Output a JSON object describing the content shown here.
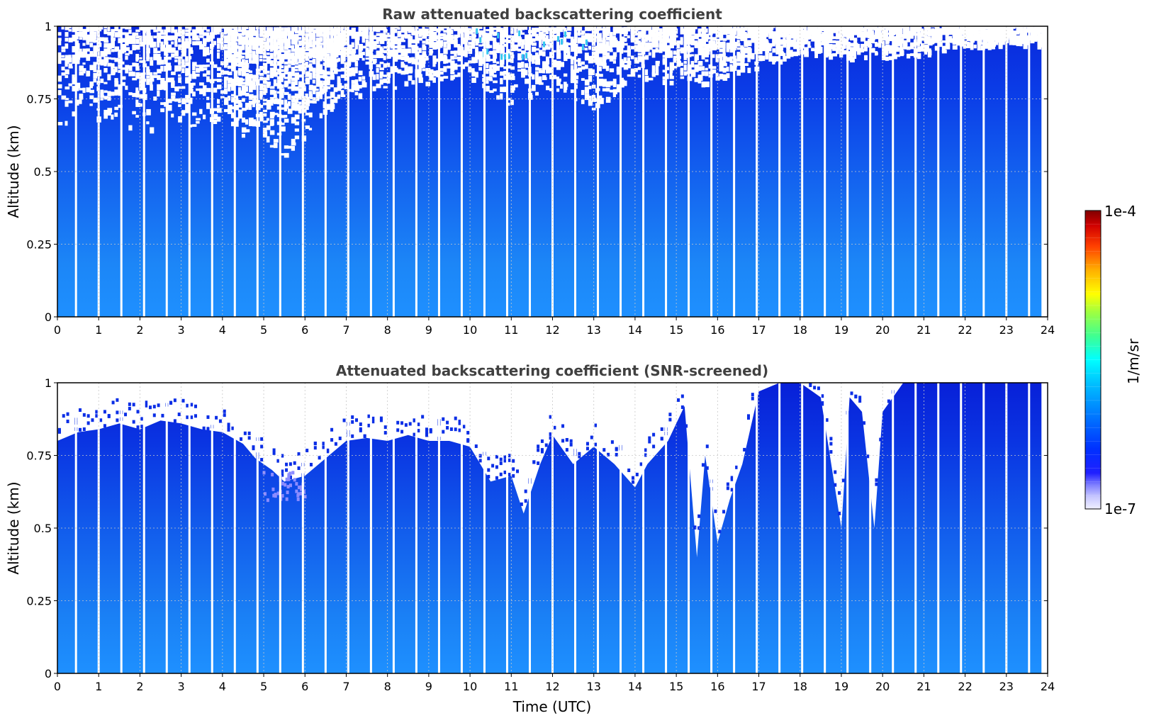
{
  "chart_data": [
    {
      "type": "heatmap",
      "title": "Raw attenuated backscattering coefficient",
      "xlabel": "",
      "ylabel": "Altitude (km)",
      "xlim": [
        0,
        24
      ],
      "ylim": [
        0,
        1
      ],
      "x_ticks": [
        "0",
        "1",
        "2",
        "3",
        "4",
        "5",
        "6",
        "7",
        "8",
        "9",
        "10",
        "11",
        "12",
        "13",
        "14",
        "15",
        "16",
        "17",
        "18",
        "19",
        "20",
        "21",
        "22",
        "23",
        "24"
      ],
      "y_ticks": [
        "0",
        "0.25",
        "0.5",
        "0.75",
        "1"
      ],
      "grid": true,
      "noise_top_profile": [
        [
          0,
          0.66
        ],
        [
          1,
          0.68
        ],
        [
          2,
          0.64
        ],
        [
          3,
          0.65
        ],
        [
          4,
          0.66
        ],
        [
          5,
          0.58
        ],
        [
          5.5,
          0.55
        ],
        [
          6,
          0.62
        ],
        [
          6.5,
          0.7
        ],
        [
          7,
          0.75
        ],
        [
          8,
          0.78
        ],
        [
          9,
          0.8
        ],
        [
          10,
          0.82
        ],
        [
          11,
          0.72
        ],
        [
          12,
          0.78
        ],
        [
          13,
          0.7
        ],
        [
          14,
          0.82
        ],
        [
          15,
          0.8
        ],
        [
          16,
          0.8
        ],
        [
          17,
          0.85
        ],
        [
          18,
          0.9
        ],
        [
          19,
          0.88
        ],
        [
          20,
          0.88
        ],
        [
          21,
          0.9
        ],
        [
          22,
          0.92
        ],
        [
          23,
          0.93
        ],
        [
          24,
          0.93
        ]
      ],
      "data_gaps_utc": [
        0.45,
        1.0,
        1.55,
        2.1,
        2.65,
        3.2,
        3.75,
        4.3,
        4.85,
        5.4,
        5.95,
        6.5,
        7.05,
        7.6,
        8.15,
        8.7,
        9.25,
        9.8,
        10.35,
        10.9,
        11.45,
        12.0,
        12.55,
        13.1,
        13.65,
        14.2,
        14.75,
        15.3,
        15.85,
        16.4,
        16.95,
        17.5,
        18.05,
        18.6,
        19.15,
        19.7,
        20.25,
        20.8,
        21.35,
        21.9,
        22.45,
        23.0,
        23.55
      ]
    },
    {
      "type": "heatmap",
      "title": "Attenuated backscattering coefficient (SNR-screened)",
      "xlabel": "Time (UTC)",
      "ylabel": "Altitude (km)",
      "xlim": [
        0,
        24
      ],
      "ylim": [
        0,
        1
      ],
      "x_ticks": [
        "0",
        "1",
        "2",
        "3",
        "4",
        "5",
        "6",
        "7",
        "8",
        "9",
        "10",
        "11",
        "12",
        "13",
        "14",
        "15",
        "16",
        "17",
        "18",
        "19",
        "20",
        "21",
        "22",
        "23",
        "24"
      ],
      "y_ticks": [
        "0",
        "0.25",
        "0.5",
        "0.75",
        "1"
      ],
      "grid": true,
      "signal_top_profile": [
        [
          0,
          0.8
        ],
        [
          0.5,
          0.83
        ],
        [
          1,
          0.84
        ],
        [
          1.5,
          0.86
        ],
        [
          2,
          0.84
        ],
        [
          2.5,
          0.87
        ],
        [
          3,
          0.86
        ],
        [
          3.5,
          0.84
        ],
        [
          4,
          0.83
        ],
        [
          4.5,
          0.79
        ],
        [
          4.8,
          0.74
        ],
        [
          5.2,
          0.7
        ],
        [
          5.5,
          0.66
        ],
        [
          6,
          0.68
        ],
        [
          6.5,
          0.74
        ],
        [
          7,
          0.8
        ],
        [
          7.5,
          0.81
        ],
        [
          8,
          0.8
        ],
        [
          8.5,
          0.82
        ],
        [
          9,
          0.8
        ],
        [
          9.5,
          0.8
        ],
        [
          10,
          0.78
        ],
        [
          10.5,
          0.66
        ],
        [
          11,
          0.68
        ],
        [
          11.3,
          0.55
        ],
        [
          11.7,
          0.72
        ],
        [
          12,
          0.82
        ],
        [
          12.5,
          0.72
        ],
        [
          13,
          0.78
        ],
        [
          13.5,
          0.72
        ],
        [
          14,
          0.64
        ],
        [
          14.3,
          0.72
        ],
        [
          14.8,
          0.8
        ],
        [
          15.2,
          0.92
        ],
        [
          15.5,
          0.4
        ],
        [
          15.7,
          0.75
        ],
        [
          16,
          0.45
        ],
        [
          16.3,
          0.6
        ],
        [
          16.6,
          0.72
        ],
        [
          17,
          0.97
        ],
        [
          17.5,
          1.0
        ],
        [
          18,
          1.0
        ],
        [
          18.5,
          0.95
        ],
        [
          19,
          0.5
        ],
        [
          19.2,
          0.95
        ],
        [
          19.5,
          0.9
        ],
        [
          19.8,
          0.5
        ],
        [
          20,
          0.9
        ],
        [
          20.5,
          1.0
        ],
        [
          21,
          1.0
        ],
        [
          22,
          1.0
        ],
        [
          23,
          1.0
        ],
        [
          24,
          1.0
        ]
      ],
      "data_gaps_utc": [
        0.45,
        1.0,
        1.55,
        2.1,
        2.65,
        3.2,
        3.75,
        4.3,
        4.85,
        5.4,
        5.95,
        6.5,
        7.05,
        7.6,
        8.15,
        8.7,
        9.25,
        9.8,
        10.35,
        10.9,
        11.45,
        12.0,
        12.55,
        13.1,
        13.65,
        14.2,
        14.75,
        15.3,
        15.85,
        16.4,
        16.95,
        17.5,
        18.05,
        18.6,
        19.15,
        19.7,
        20.25,
        20.8,
        21.35,
        21.9,
        22.45,
        23.0,
        23.55
      ]
    }
  ],
  "colorbar": {
    "max_label": "1e-4",
    "min_label": "1e-7",
    "unit_label": "1/m/sr",
    "colors": [
      "#e8e8ff",
      "#b4b4ff",
      "#7878ff",
      "#3c3cff",
      "#0000ff",
      "#0033ff",
      "#0066ff",
      "#0099ff",
      "#00ccff",
      "#00ffff",
      "#33ffcc",
      "#66ff99",
      "#99ff66",
      "#ccff33",
      "#ffff00",
      "#ffcc00",
      "#ff9900",
      "#ff6600",
      "#ff3300",
      "#ff0000",
      "#cc0000",
      "#800000"
    ]
  }
}
